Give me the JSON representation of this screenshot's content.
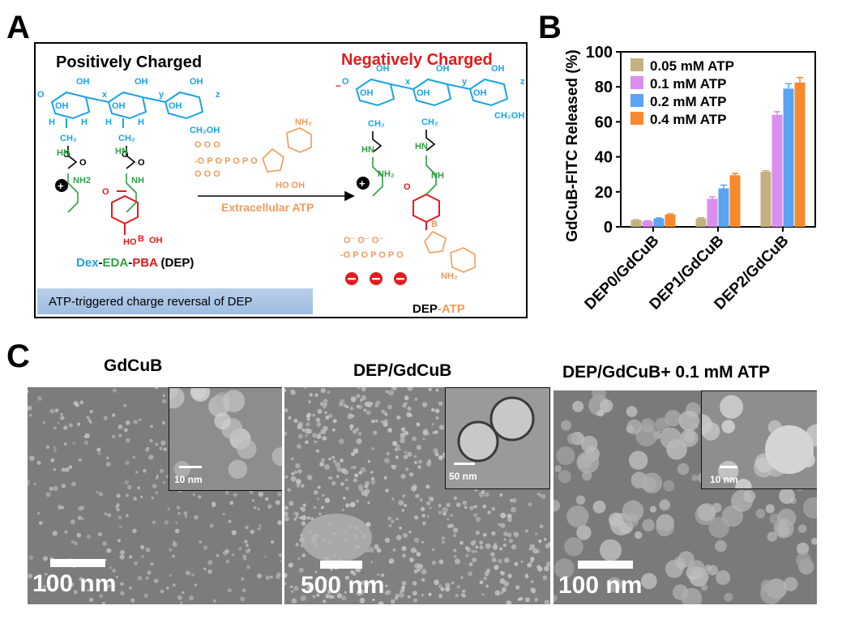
{
  "panel_letters": {
    "a": "A",
    "b": "B",
    "c": "C"
  },
  "panel_a": {
    "heading_positive": "Positively Charged",
    "heading_negative": "Negatively Charged",
    "reagent_label": "Extracellular ATP",
    "nh2_label": "NH2",
    "nh_label": "NH",
    "boh_label": "B",
    "oh_label": "OH",
    "ho_label": "HO",
    "dep_label": {
      "dex": "Dex",
      "dash1": "-",
      "eda": "EDA",
      "dash2": "-",
      "pba": "PBA",
      "suffix": " (DEP)"
    },
    "dep_atp_label": {
      "dep": "DEP",
      "dash": "-",
      "atp": "ATP"
    },
    "caption": "ATP-triggered charge reversal of DEP",
    "colors": {
      "dextran": "#1aa3e8",
      "eda": "#2ea043",
      "pba": "#e41a1c",
      "atp": "#f29a5a"
    }
  },
  "chart_data": {
    "type": "bar",
    "title": "",
    "xlabel": "",
    "ylabel": "GdCuB-FITC Released (%)",
    "ylim": [
      0,
      100
    ],
    "yticks": [
      0,
      20,
      40,
      60,
      80,
      100
    ],
    "categories": [
      "DEP0/GdCuB",
      "DEP1/GdCuB",
      "DEP2/GdCuB"
    ],
    "legend_position": "top-left",
    "series": [
      {
        "name": "0.05 mM ATP",
        "color": "#c2b283",
        "values": [
          3.8,
          4.8,
          31.5
        ],
        "errors": [
          0.3,
          0.4,
          0.6
        ]
      },
      {
        "name": "0.1 mM ATP",
        "color": "#d98ef0",
        "values": [
          3.2,
          16.0,
          64.0
        ],
        "errors": [
          0.3,
          1.2,
          1.8
        ]
      },
      {
        "name": "0.2 mM ATP",
        "color": "#5aa4f3",
        "values": [
          4.8,
          22.0,
          79.0
        ],
        "errors": [
          0.3,
          1.8,
          2.8
        ]
      },
      {
        "name": "0.4 mM ATP",
        "color": "#f8892d",
        "values": [
          7.0,
          29.5,
          82.5
        ],
        "errors": [
          0.4,
          1.0,
          2.8
        ]
      }
    ]
  },
  "panel_c": {
    "images": [
      {
        "title": "GdCuB",
        "scale": "100 nm",
        "inset_scale": "10 nm"
      },
      {
        "title": "DEP/GdCuB",
        "scale": "500 nm",
        "inset_scale": "50 nm"
      },
      {
        "title": "DEP/GdCuB+ 0.1 mM ATP",
        "scale": "100 nm",
        "inset_scale": "10 nm"
      }
    ]
  }
}
